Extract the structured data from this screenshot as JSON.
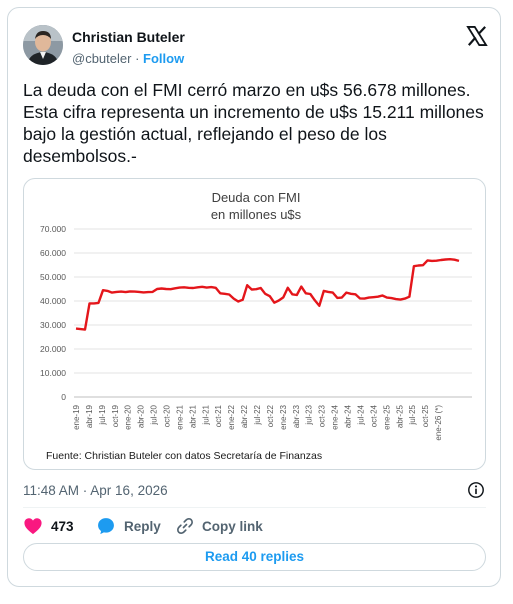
{
  "author": {
    "name": "Christian Buteler",
    "handle": "@cbuteler",
    "separator": "·",
    "follow_label": "Follow"
  },
  "tweet": {
    "text": "La deuda con el FMI cerró marzo en u$s 56.678 millones. Esta cifra representa un incremento de u$s 15.211 millones bajo la gestión actual, reflejando el peso de los desembolsos.-",
    "timestamp": "11:48 AM · Apr 16, 2026"
  },
  "actions": {
    "like_count": "473",
    "reply_label": "Reply",
    "copy_label": "Copy link",
    "read_replies_label": "Read 40 replies"
  },
  "colors": {
    "like_heart": "#f91880",
    "reply_bubble": "#1d9bf0",
    "link_blue": "#1d9bf0",
    "chart_line": "#e4161b"
  },
  "icons": [
    "x-logo-icon",
    "heart-icon",
    "reply-icon",
    "link-icon",
    "info-icon"
  ],
  "chart_data": {
    "type": "line",
    "title": "Deuda con FMI",
    "subtitle": "en millones u$s",
    "source": "Fuente: Christian Buteler con datos Secretaría de Finanzas",
    "ylim": [
      0,
      70000
    ],
    "yticks": [
      0,
      10000,
      20000,
      30000,
      40000,
      50000,
      60000,
      70000
    ],
    "ytick_labels": [
      "0",
      "10.000",
      "20.000",
      "30.000",
      "40.000",
      "50.000",
      "60.000",
      "70.000"
    ],
    "xtick_labels": [
      "ene-19",
      "abr-19",
      "jul-19",
      "oct-19",
      "ene-20",
      "abr-20",
      "jul-20",
      "oct-20",
      "ene-21",
      "abr-21",
      "jul-21",
      "oct-21",
      "ene-22",
      "abr-22",
      "jul-22",
      "oct-22",
      "ene-23",
      "abr-23",
      "jul-23",
      "oct-23",
      "ene-24",
      "abr-24",
      "jul-24",
      "oct-24",
      "ene-25",
      "abr-25",
      "jul-25",
      "oct-25",
      "ene-26 (*)"
    ],
    "grid": true,
    "legend": "none",
    "series": [
      {
        "color": "#e4161b",
        "values": [
          28500,
          28300,
          28100,
          39000,
          39000,
          39200,
          44500,
          44200,
          43500,
          43800,
          43900,
          43700,
          44000,
          43900,
          43800,
          43600,
          43700,
          43800,
          45000,
          45200,
          45000,
          44900,
          45300,
          45600,
          45700,
          45500,
          45400,
          45700,
          45900,
          45600,
          45800,
          45500,
          43200,
          43000,
          42700,
          41000,
          39800,
          40500,
          46600,
          44800,
          44900,
          45400,
          43000,
          42000,
          39300,
          40200,
          41500,
          45500,
          42800,
          42500,
          46000,
          43200,
          42900,
          40300,
          38000,
          44200,
          43800,
          43500,
          41300,
          41400,
          43500,
          43000,
          42800,
          41100,
          41000,
          41400,
          41600,
          41800,
          42300,
          41400,
          41200,
          40800,
          40600,
          41000,
          41800,
          54500,
          54800,
          54900,
          56900,
          56700,
          56800,
          57100,
          57300,
          57400,
          57200,
          56700
        ]
      }
    ]
  }
}
